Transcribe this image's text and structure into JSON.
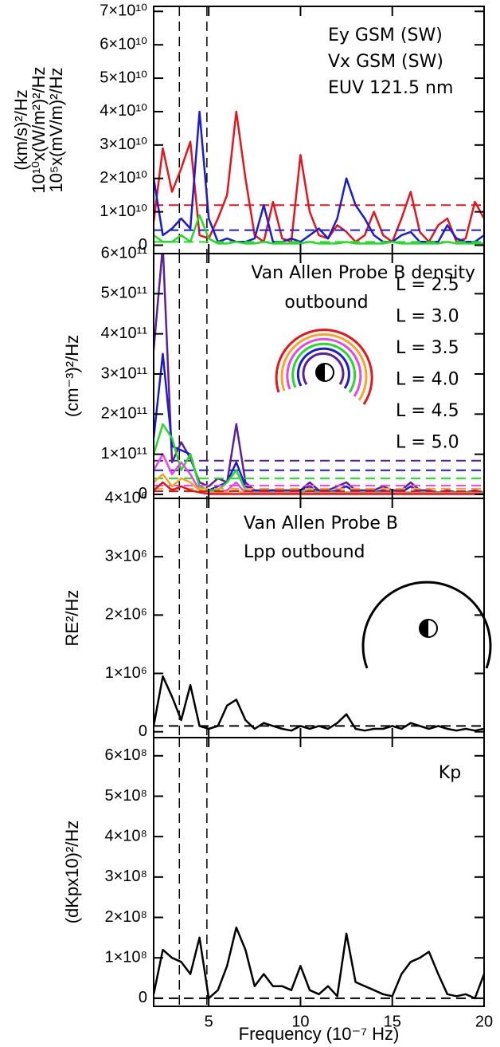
{
  "chart_data": [
    {
      "type": "line",
      "ylabel": [
        "(km/s)²/Hz",
        "10¹⁰x(W/m²)²/Hz",
        "10⁵x(mV/m)²/Hz"
      ],
      "x": [
        2,
        2.5,
        3,
        3.5,
        4,
        4.5,
        5,
        5.5,
        6,
        6.5,
        7,
        7.5,
        8,
        8.5,
        9,
        9.5,
        10,
        10.5,
        11,
        11.5,
        12,
        12.5,
        13,
        13.5,
        14,
        14.5,
        15,
        15.5,
        16,
        16.5,
        17,
        17.5,
        18,
        18.5,
        19,
        19.5,
        20
      ],
      "xlim": [
        2,
        20
      ],
      "xticks": [
        5,
        10,
        15,
        20
      ],
      "reference_lines_x": [
        3.4,
        4.9
      ],
      "ylim": [
        -2500000000.0,
        71500000000.0
      ],
      "yticks": [
        0,
        {
          "value": 10000000000.0,
          "label": "1×10¹⁰"
        },
        {
          "value": 20000000000.0,
          "label": "2×10¹⁰"
        },
        {
          "value": 30000000000.0,
          "label": "3×10¹⁰"
        },
        {
          "value": 40000000000.0,
          "label": "4×10¹⁰"
        },
        {
          "value": 50000000000.0,
          "label": "5×10¹⁰"
        },
        {
          "value": 60000000000.0,
          "label": "6×10¹⁰"
        },
        {
          "value": 70000000000.0,
          "label": "7×10¹⁰"
        }
      ],
      "series": [
        {
          "name": "Ey GSM (SW)",
          "color": "#e8141c",
          "level": 12000000000.0,
          "values": [
            7000000000.0,
            29000000000.0,
            16000000000.0,
            23000000000.0,
            31000000000.0,
            3000000000.0,
            2000000000.0,
            8000000000.0,
            15000000000.0,
            40000000000.0,
            20000000000.0,
            3000000000.0,
            1000000000.0,
            13000000000.0,
            2000000000.0,
            1000000000.0,
            27000000000.0,
            10000000000.0,
            3000000000.0,
            2000000000.0,
            6000000000.0,
            4000000000.0,
            1000000000.0,
            3000000000.0,
            10000000000.0,
            3000000000.0,
            1000000000.0,
            8000000000.0,
            16000000000.0,
            4000000000.0,
            1000000000.0,
            6000000000.0,
            8000000000.0,
            1000000000.0,
            2000000000.0,
            13000000000.0,
            8000000000.0
          ]
        },
        {
          "name": "Vx GSM (SW)",
          "color": "#1a1adc",
          "level": 4500000000.0,
          "values": [
            20000000000.0,
            3000000000.0,
            5000000000.0,
            8000000000.0,
            5000000000.0,
            40000000000.0,
            8000000000.0,
            1000000000.0,
            2000000000.0,
            1000000000.0,
            1000000000.0,
            2000000000.0,
            12000000000.0,
            1000000000.0,
            1000000000.0,
            2000000000.0,
            1000000000.0,
            3000000000.0,
            5000000000.0,
            2000000000.0,
            8000000000.0,
            20000000000.0,
            12000000000.0,
            8000000000.0,
            3000000000.0,
            1000000000.0,
            1000000000.0,
            3000000000.0,
            4000000000.0,
            1000000000.0,
            1000000000.0,
            1000000000.0,
            6000000000.0,
            2000000000.0,
            1000000000.0,
            1000000000.0,
            3000000000.0
          ]
        },
        {
          "name": "EUV 121.5 nm",
          "color": "#22dd22",
          "level": 1000000000.0,
          "values": [
            3000000000.0,
            1000000000.0,
            1000000000.0,
            3000000000.0,
            1000000000.0,
            9000000000.0,
            2000000000.0,
            500000000.0,
            500000000.0,
            1000000000.0,
            500000000.0,
            500000000.0,
            1000000000.0,
            500000000.0,
            500000000.0,
            500000000.0,
            500000000.0,
            1000000000.0,
            500000000.0,
            500000000.0,
            500000000.0,
            1000000000.0,
            500000000.0,
            500000000.0,
            500000000.0,
            500000000.0,
            1000000000.0,
            500000000.0,
            500000000.0,
            500000000.0,
            500000000.0,
            500000000.0,
            1000000000.0,
            500000000.0,
            500000000.0,
            500000000.0,
            500000000.0
          ]
        }
      ]
    },
    {
      "type": "line",
      "ylabel": [
        "(cm⁻³)²/Hz"
      ],
      "annotations": [
        "Van Allen Probe B density",
        "outbound"
      ],
      "x": [
        2,
        2.5,
        3,
        3.5,
        4,
        4.5,
        5,
        5.5,
        6,
        6.5,
        7,
        7.5,
        8,
        8.5,
        9,
        9.5,
        10,
        10.5,
        11,
        11.5,
        12,
        12.5,
        13,
        13.5,
        14,
        14.5,
        15,
        15.5,
        16,
        16.5,
        17,
        17.5,
        18,
        18.5,
        19,
        19.5,
        20
      ],
      "xlim": [
        2,
        20
      ],
      "xticks": [
        5,
        10,
        15,
        20
      ],
      "reference_lines_x": [
        3.4,
        4.9
      ],
      "ylim": [
        -10000000000.0,
        600000000000.0
      ],
      "yticks": [
        0,
        {
          "value": 100000000000.0,
          "label": "1×10¹¹"
        },
        {
          "value": 200000000000.0,
          "label": "2×10¹¹"
        },
        {
          "value": 300000000000.0,
          "label": "3×10¹¹"
        },
        {
          "value": 400000000000.0,
          "label": "4×10¹¹"
        },
        {
          "value": 500000000000.0,
          "label": "5×10¹¹"
        },
        {
          "value": 600000000000.0,
          "label": "6×10¹¹"
        }
      ],
      "series": [
        {
          "name": "L = 2.5",
          "color": "#5b1f9e",
          "level": 84000000000.0,
          "values": [
            360000000000.0,
            620000000000.0,
            80000000000.0,
            130000000000.0,
            90000000000.0,
            30000000000.0,
            20000000000.0,
            40000000000.0,
            30000000000.0,
            175000000000.0,
            30000000000.0,
            10000000000.0,
            10000000000.0,
            10000000000.0,
            10000000000.0,
            10000000000.0,
            10000000000.0,
            30000000000.0,
            10000000000.0,
            10000000000.0,
            20000000000.0,
            30000000000.0,
            10000000000.0,
            10000000000.0,
            10000000000.0,
            20000000000.0,
            10000000000.0,
            10000000000.0,
            30000000000.0,
            10000000000.0,
            10000000000.0,
            5000000000.0,
            10000000000.0,
            5000000000.0,
            5000000000.0,
            10000000000.0,
            5000000000.0
          ]
        },
        {
          "name": "L = 3.0",
          "color": "#1a1adc",
          "level": 60000000000.0,
          "values": [
            140000000000.0,
            350000000000.0,
            120000000000.0,
            110000000000.0,
            100000000000.0,
            20000000000.0,
            10000000000.0,
            20000000000.0,
            30000000000.0,
            80000000000.0,
            20000000000.0,
            10000000000.0,
            5000000000.0,
            10000000000.0,
            5000000000.0,
            5000000000.0,
            10000000000.0,
            20000000000.0,
            5000000000.0,
            5000000000.0,
            10000000000.0,
            20000000000.0,
            5000000000.0,
            5000000000.0,
            5000000000.0,
            10000000000.0,
            5000000000.0,
            5000000000.0,
            20000000000.0,
            5000000000.0,
            5000000000.0,
            5000000000.0,
            5000000000.0,
            5000000000.0,
            5000000000.0,
            5000000000.0,
            5000000000.0
          ]
        },
        {
          "name": "L = 3.5",
          "color": "#22dd22",
          "level": 40000000000.0,
          "values": [
            100000000000.0,
            175000000000.0,
            140000000000.0,
            60000000000.0,
            100000000000.0,
            20000000000.0,
            10000000000.0,
            10000000000.0,
            30000000000.0,
            60000000000.0,
            10000000000.0,
            5000000000.0,
            5000000000.0,
            5000000000.0,
            5000000000.0,
            5000000000.0,
            5000000000.0,
            10000000000.0,
            5000000000.0,
            5000000000.0,
            5000000000.0,
            5000000000.0,
            5000000000.0,
            5000000000.0,
            5000000000.0,
            5000000000.0,
            5000000000.0,
            5000000000.0,
            5000000000.0,
            5000000000.0,
            5000000000.0,
            5000000000.0,
            5000000000.0,
            5000000000.0,
            5000000000.0,
            5000000000.0,
            5000000000.0
          ]
        },
        {
          "name": "L = 4.0",
          "color": "#ee44ee",
          "level": 22000000000.0,
          "values": [
            60000000000.0,
            100000000000.0,
            50000000000.0,
            80000000000.0,
            50000000000.0,
            10000000000.0,
            5000000000.0,
            5000000000.0,
            10000000000.0,
            30000000000.0,
            3000000000.0,
            3000000000.0,
            3000000000.0,
            3000000000.0,
            3000000000.0,
            3000000000.0,
            3000000000.0,
            3000000000.0,
            3000000000.0,
            3000000000.0,
            3000000000.0,
            3000000000.0,
            3000000000.0,
            3000000000.0,
            3000000000.0,
            3000000000.0,
            3000000000.0,
            3000000000.0,
            3000000000.0,
            3000000000.0,
            3000000000.0,
            3000000000.0,
            3000000000.0,
            3000000000.0,
            3000000000.0,
            3000000000.0,
            3000000000.0
          ]
        },
        {
          "name": "L = 4.5",
          "color": "#f5a623",
          "level": 14000000000.0,
          "values": [
            30000000000.0,
            50000000000.0,
            20000000000.0,
            40000000000.0,
            30000000000.0,
            10000000000.0,
            3000000000.0,
            3000000000.0,
            5000000000.0,
            10000000000.0,
            2000000000.0,
            2000000000.0,
            2000000000.0,
            2000000000.0,
            2000000000.0,
            2000000000.0,
            2000000000.0,
            2000000000.0,
            2000000000.0,
            2000000000.0,
            2000000000.0,
            2000000000.0,
            2000000000.0,
            2000000000.0,
            2000000000.0,
            2000000000.0,
            2000000000.0,
            2000000000.0,
            2000000000.0,
            2000000000.0,
            2000000000.0,
            2000000000.0,
            2000000000.0,
            2000000000.0,
            2000000000.0,
            2000000000.0,
            2000000000.0
          ]
        },
        {
          "name": "L = 5.0",
          "color": "#e8141c",
          "level": 8000000000.0,
          "values": [
            10000000000.0,
            30000000000.0,
            10000000000.0,
            20000000000.0,
            10000000000.0,
            5000000000.0,
            1000000000.0,
            1000000000.0,
            1000000000.0,
            1000000000.0,
            1000000000.0,
            1000000000.0,
            1000000000.0,
            1000000000.0,
            1000000000.0,
            1000000000.0,
            1000000000.0,
            1000000000.0,
            1000000000.0,
            1000000000.0,
            1000000000.0,
            1000000000.0,
            1000000000.0,
            1000000000.0,
            1000000000.0,
            1000000000.0,
            1000000000.0,
            1000000000.0,
            1000000000.0,
            1000000000.0,
            1000000000.0,
            1000000000.0,
            1000000000.0,
            1000000000.0,
            1000000000.0,
            1000000000.0,
            1000000000.0
          ]
        }
      ]
    },
    {
      "type": "line",
      "ylabel": [
        "RE²/Hz"
      ],
      "annotations": [
        "Van Allen Probe B",
        "Lpp outbound"
      ],
      "x": [
        2,
        2.5,
        3,
        3.5,
        4,
        4.5,
        5,
        5.5,
        6,
        6.5,
        7,
        7.5,
        8,
        8.5,
        9,
        9.5,
        10,
        10.5,
        11,
        11.5,
        12,
        12.5,
        13,
        13.5,
        14,
        14.5,
        15,
        15.5,
        16,
        16.5,
        17,
        17.5,
        18,
        18.5,
        19,
        19.5,
        20
      ],
      "xlim": [
        2,
        20
      ],
      "xticks": [
        5,
        10,
        15,
        20
      ],
      "reference_lines_x": [
        3.4,
        4.9
      ],
      "ylim": [
        -100000.0,
        4000000.0
      ],
      "yticks": [
        0,
        {
          "value": 1000000.0,
          "label": "1×10⁶"
        },
        {
          "value": 2000000.0,
          "label": "2×10⁶"
        },
        {
          "value": 3000000.0,
          "label": "3×10⁶"
        },
        {
          "value": 4000000.0,
          "label": "4×10⁶"
        }
      ],
      "series": [
        {
          "color": "#000000",
          "level": 100000.0,
          "values": [
            100000.0,
            950000.0,
            600000.0,
            200000.0,
            800000.0,
            100000.0,
            50000.0,
            100000.0,
            450000.0,
            550000.0,
            200000.0,
            50000.0,
            150000.0,
            100000.0,
            50000.0,
            20000.0,
            100000.0,
            50000.0,
            100000.0,
            50000.0,
            150000.0,
            300000.0,
            50000.0,
            20000.0,
            50000.0,
            50000.0,
            100000.0,
            50000.0,
            150000.0,
            100000.0,
            50000.0,
            100000.0,
            50000.0,
            20000.0,
            50000.0,
            20000.0,
            50000.0
          ]
        }
      ]
    },
    {
      "type": "line",
      "ylabel": [
        "(dKpx10)²/Hz"
      ],
      "annotations": [
        "Kp"
      ],
      "xlabel": "Frequency (10⁻⁷ Hz)",
      "x": [
        2,
        2.5,
        3,
        3.5,
        4,
        4.5,
        5,
        5.5,
        6,
        6.5,
        7,
        7.5,
        8,
        8.5,
        9,
        9.5,
        10,
        10.5,
        11,
        11.5,
        12,
        12.5,
        13,
        13.5,
        14,
        14.5,
        15,
        15.5,
        16,
        16.5,
        17,
        17.5,
        18,
        18.5,
        19,
        19.5,
        20
      ],
      "xlim": [
        2,
        20
      ],
      "xticks": [
        5,
        10,
        15,
        20
      ],
      "reference_lines_x": [
        3.4,
        4.9
      ],
      "ylim": [
        -20000000.0,
        645000000.0
      ],
      "yticks": [
        0,
        {
          "value": 100000000.0,
          "label": "1×10⁸"
        },
        {
          "value": 200000000.0,
          "label": "2×10⁸"
        },
        {
          "value": 300000000.0,
          "label": "3×10⁸"
        },
        {
          "value": 400000000.0,
          "label": "4×10⁸"
        },
        {
          "value": 500000000.0,
          "label": "5×10⁸"
        },
        {
          "value": 600000000.0,
          "label": "6×10⁸"
        }
      ],
      "series": [
        {
          "color": "#000000",
          "level": 0,
          "values": [
            10000000.0,
            120000000.0,
            100000000.0,
            90000000.0,
            60000000.0,
            150000000.0,
            0,
            20000000.0,
            80000000.0,
            175000000.0,
            120000000.0,
            30000000.0,
            60000000.0,
            30000000.0,
            30000000.0,
            20000000.0,
            80000000.0,
            20000000.0,
            10000000.0,
            30000000.0,
            5000000.0,
            160000000.0,
            40000000.0,
            30000000.0,
            20000000.0,
            10000000.0,
            5000000.0,
            60000000.0,
            90000000.0,
            100000000.0,
            115000000.0,
            60000000.0,
            10000000.0,
            5000000.0,
            10000000.0,
            0,
            60000000.0
          ]
        }
      ]
    }
  ]
}
